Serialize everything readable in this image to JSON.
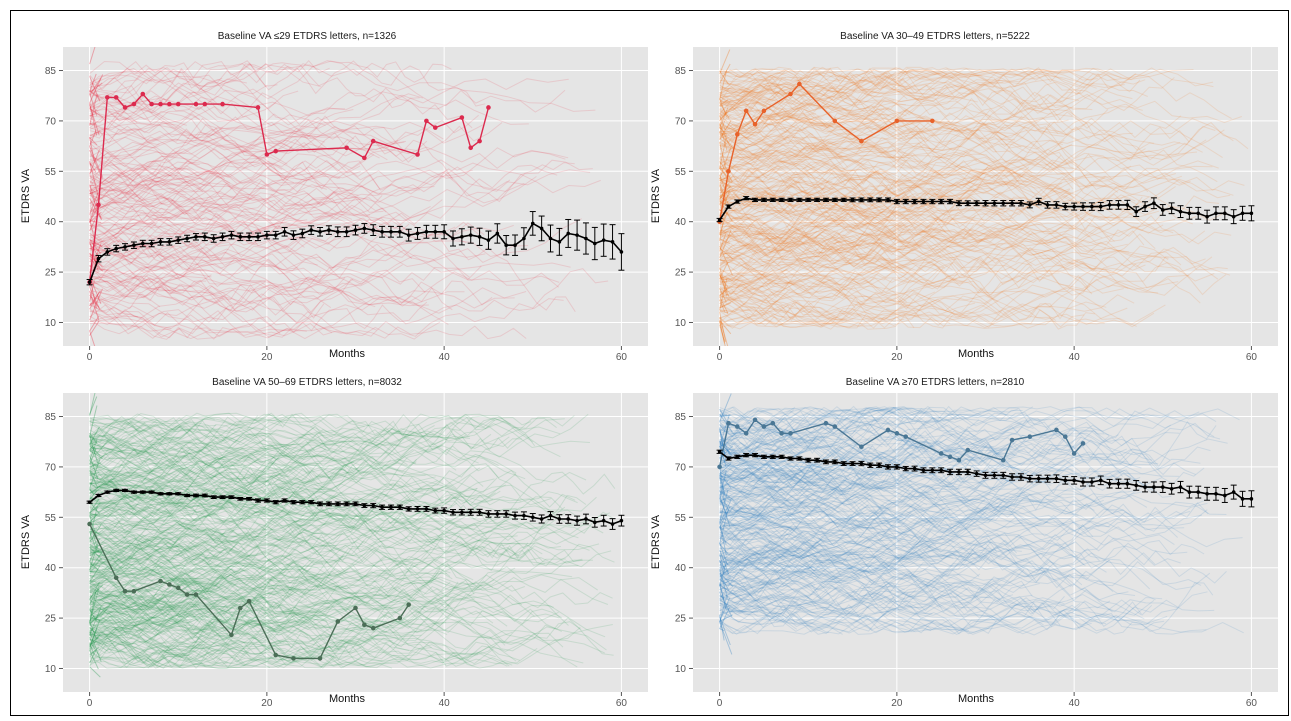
{
  "chart_data": [
    {
      "type": "line",
      "title": "Baseline VA ≤29 ETDRS letters, n=1326",
      "xlabel": "Months",
      "ylabel": "ETDRS VA",
      "xlim": [
        -3,
        63
      ],
      "ylim": [
        3,
        92
      ],
      "xticks": [
        0,
        20,
        40,
        60
      ],
      "yticks": [
        10,
        25,
        40,
        55,
        70,
        85
      ],
      "grid": true,
      "colors": {
        "cohort": "#e8233a",
        "highlight": "#dc2a4e",
        "mean": "#000000"
      },
      "background_band": {
        "y_low": 5,
        "y_high": 88,
        "density": "low"
      },
      "example_patient": {
        "x": [
          0,
          1,
          2,
          3,
          4,
          5,
          6,
          7,
          8,
          9,
          10,
          12,
          13,
          15,
          19,
          20,
          21,
          29,
          31,
          32,
          37,
          38,
          39,
          42,
          43,
          44,
          45
        ],
        "y": [
          22,
          45,
          77,
          77,
          74,
          75,
          78,
          75,
          75,
          75,
          75,
          75,
          75,
          75,
          74,
          60,
          61,
          62,
          59,
          64,
          60,
          70,
          68,
          71,
          62,
          64,
          74
        ]
      },
      "mean_series": {
        "name": "Mean ± SE",
        "x": [
          0,
          1,
          2,
          3,
          4,
          5,
          6,
          7,
          8,
          9,
          10,
          11,
          12,
          13,
          14,
          15,
          16,
          17,
          18,
          19,
          20,
          21,
          22,
          23,
          24,
          25,
          26,
          27,
          28,
          29,
          30,
          31,
          32,
          33,
          34,
          35,
          36,
          37,
          38,
          39,
          40,
          41,
          42,
          43,
          44,
          45,
          46,
          47,
          48,
          49,
          50,
          51,
          52,
          53,
          54,
          55,
          56,
          57,
          58,
          59,
          60
        ],
        "y": [
          22,
          29,
          31,
          32,
          32.5,
          33,
          33.5,
          33.5,
          34,
          34,
          34.5,
          35,
          35.5,
          35.5,
          35,
          35.5,
          36,
          35.5,
          35.5,
          35.5,
          36,
          36,
          37,
          36,
          36.5,
          37.5,
          37,
          37.5,
          37,
          37,
          37.5,
          38,
          37.5,
          37,
          37,
          37,
          36,
          36.5,
          37,
          37,
          37,
          35,
          35.5,
          36,
          35.5,
          34.5,
          36.5,
          33,
          33,
          35,
          39.5,
          38,
          35,
          34,
          36.5,
          36,
          35,
          33.5,
          34.5,
          34,
          31
        ],
        "se": [
          0.5,
          0.6,
          0.6,
          0.6,
          0.6,
          0.6,
          0.6,
          0.6,
          0.6,
          0.6,
          0.6,
          0.6,
          0.6,
          0.7,
          0.7,
          0.7,
          0.7,
          0.7,
          0.7,
          0.7,
          0.7,
          0.7,
          0.8,
          0.8,
          0.8,
          0.8,
          0.8,
          0.8,
          0.9,
          0.9,
          0.9,
          0.9,
          1.0,
          1.0,
          1.0,
          1.0,
          1.1,
          1.1,
          1.2,
          1.2,
          1.3,
          1.4,
          1.5,
          1.5,
          1.6,
          1.7,
          1.8,
          1.8,
          1.9,
          2.0,
          2.2,
          2.3,
          2.5,
          2.5,
          2.6,
          2.8,
          2.9,
          3.0,
          3.0,
          3.2,
          3.4
        ]
      }
    },
    {
      "type": "line",
      "title": "Baseline VA 30–49 ETDRS letters, n=5222",
      "xlabel": "Months",
      "ylabel": "ETDRS VA",
      "xlim": [
        -3,
        63
      ],
      "ylim": [
        3,
        92
      ],
      "xticks": [
        0,
        20,
        40,
        60
      ],
      "yticks": [
        10,
        25,
        40,
        55,
        70,
        85
      ],
      "grid": true,
      "colors": {
        "cohort": "#ee7318",
        "highlight": "#e8622a",
        "mean": "#000000"
      },
      "background_band": {
        "y_low": 8,
        "y_high": 86,
        "density": "high"
      },
      "example_patient": {
        "x": [
          0,
          1,
          2,
          3,
          4,
          5,
          8,
          9,
          13,
          16,
          20,
          24
        ],
        "y": [
          40,
          55,
          66,
          73,
          69,
          73,
          78,
          81,
          70,
          64,
          70,
          70
        ]
      },
      "mean_series": {
        "name": "Mean ± SE",
        "x": [
          0,
          1,
          2,
          3,
          4,
          5,
          6,
          7,
          8,
          9,
          10,
          11,
          12,
          13,
          14,
          15,
          16,
          17,
          18,
          19,
          20,
          21,
          22,
          23,
          24,
          25,
          26,
          27,
          28,
          29,
          30,
          31,
          32,
          33,
          34,
          35,
          36,
          37,
          38,
          39,
          40,
          41,
          42,
          43,
          44,
          45,
          46,
          47,
          48,
          49,
          50,
          51,
          52,
          53,
          54,
          55,
          56,
          57,
          58,
          59,
          60
        ],
        "y": [
          40.5,
          44.5,
          46,
          47,
          46.5,
          46.5,
          46.5,
          46.5,
          46.5,
          46.5,
          46.5,
          46.5,
          46.5,
          46.5,
          46.5,
          46.5,
          46.5,
          46.5,
          46.5,
          46.5,
          46,
          46,
          46,
          46,
          46,
          46,
          46,
          45.5,
          45.5,
          45.5,
          45.5,
          45.5,
          45.5,
          45.5,
          45.5,
          45,
          46,
          45,
          45,
          44.5,
          44.5,
          44.5,
          44.5,
          44.5,
          45,
          45,
          45,
          43,
          44.5,
          45.5,
          43.5,
          44,
          43,
          42.5,
          42.5,
          41.5,
          42.5,
          42.5,
          41.5,
          42.5,
          42.5
        ],
        "se": [
          0.3,
          0.3,
          0.3,
          0.3,
          0.3,
          0.3,
          0.3,
          0.3,
          0.3,
          0.3,
          0.3,
          0.3,
          0.3,
          0.3,
          0.3,
          0.35,
          0.35,
          0.35,
          0.35,
          0.35,
          0.4,
          0.4,
          0.4,
          0.4,
          0.4,
          0.4,
          0.4,
          0.45,
          0.45,
          0.45,
          0.5,
          0.5,
          0.5,
          0.5,
          0.5,
          0.55,
          0.6,
          0.6,
          0.6,
          0.6,
          0.65,
          0.7,
          0.7,
          0.75,
          0.8,
          0.8,
          0.85,
          0.9,
          0.9,
          1.0,
          1.0,
          1.0,
          1.1,
          1.1,
          1.1,
          1.2,
          1.2,
          1.2,
          1.3,
          1.3,
          1.4
        ]
      }
    },
    {
      "type": "line",
      "title": "Baseline VA 50–69 ETDRS letters, n=8032",
      "xlabel": "Months",
      "ylabel": "ETDRS VA",
      "xlim": [
        -3,
        63
      ],
      "ylim": [
        3,
        92
      ],
      "xticks": [
        0,
        20,
        40,
        60
      ],
      "yticks": [
        10,
        25,
        40,
        55,
        70,
        85
      ],
      "grid": true,
      "colors": {
        "cohort": "#1e9448",
        "highlight": "#4b6e57",
        "mean": "#000000"
      },
      "background_band": {
        "y_low": 10,
        "y_high": 86,
        "density": "very-high"
      },
      "example_patient": {
        "x": [
          0,
          3,
          4,
          5,
          8,
          9,
          10,
          11,
          12,
          16,
          17,
          18,
          21,
          23,
          26,
          28,
          30,
          31,
          32,
          35,
          36
        ],
        "y": [
          53,
          37,
          33,
          33,
          36,
          35,
          34,
          32,
          32,
          20,
          28,
          30,
          14,
          13,
          13,
          24,
          28,
          23,
          22,
          25,
          29
        ]
      },
      "mean_series": {
        "name": "Mean ± SE",
        "x": [
          0,
          1,
          2,
          3,
          4,
          5,
          6,
          7,
          8,
          9,
          10,
          11,
          12,
          13,
          14,
          15,
          16,
          17,
          18,
          19,
          20,
          21,
          22,
          23,
          24,
          25,
          26,
          27,
          28,
          29,
          30,
          31,
          32,
          33,
          34,
          35,
          36,
          37,
          38,
          39,
          40,
          41,
          42,
          43,
          44,
          45,
          46,
          47,
          48,
          49,
          50,
          51,
          52,
          53,
          54,
          55,
          56,
          57,
          58,
          59,
          60
        ],
        "y": [
          59.5,
          61.5,
          62.5,
          63,
          63,
          62.5,
          62.5,
          62.5,
          62,
          62,
          62,
          61.5,
          61.5,
          61.5,
          61,
          61,
          61,
          60.5,
          60.5,
          60,
          60,
          59.5,
          60,
          59.5,
          59.5,
          59.5,
          59,
          59,
          59,
          59,
          59,
          58.5,
          58.5,
          58,
          58,
          58,
          57.5,
          57.5,
          57.5,
          57,
          57,
          56.5,
          56.5,
          56.5,
          56.5,
          56,
          56,
          56,
          55.5,
          55.5,
          55,
          54.5,
          55.5,
          54.5,
          54.5,
          54,
          54.5,
          53.5,
          54,
          53,
          54
        ],
        "se": [
          0.2,
          0.2,
          0.2,
          0.2,
          0.2,
          0.2,
          0.2,
          0.2,
          0.2,
          0.2,
          0.2,
          0.2,
          0.25,
          0.25,
          0.25,
          0.25,
          0.25,
          0.25,
          0.25,
          0.3,
          0.3,
          0.3,
          0.3,
          0.3,
          0.3,
          0.3,
          0.35,
          0.35,
          0.35,
          0.35,
          0.35,
          0.35,
          0.4,
          0.4,
          0.4,
          0.4,
          0.4,
          0.45,
          0.45,
          0.45,
          0.5,
          0.5,
          0.5,
          0.55,
          0.55,
          0.6,
          0.6,
          0.6,
          0.65,
          0.7,
          0.7,
          0.75,
          0.75,
          0.8,
          0.8,
          0.85,
          0.9,
          0.9,
          1.0,
          1.0,
          1.0
        ]
      }
    },
    {
      "type": "line",
      "title": "Baseline VA ≥70 ETDRS letters, n=2810",
      "xlabel": "Months",
      "ylabel": "ETDRS VA",
      "xlim": [
        -3,
        63
      ],
      "ylim": [
        3,
        92
      ],
      "xticks": [
        0,
        20,
        40,
        60
      ],
      "yticks": [
        10,
        25,
        40,
        55,
        70,
        85
      ],
      "grid": true,
      "colors": {
        "cohort": "#2f7fbf",
        "highlight": "#4a7795",
        "mean": "#000000"
      },
      "background_band": {
        "y_low": 20,
        "y_high": 88,
        "density": "high"
      },
      "example_patient": {
        "x": [
          0,
          1,
          2,
          3,
          4,
          5,
          6,
          7,
          8,
          12,
          13,
          16,
          19,
          20,
          21,
          25,
          26,
          27,
          28,
          32,
          33,
          35,
          38,
          39,
          40,
          41
        ],
        "y": [
          70,
          83,
          82,
          80,
          84,
          82,
          83,
          80,
          80,
          83,
          82,
          76,
          81,
          80,
          79,
          74,
          73,
          72,
          75,
          72,
          78,
          79,
          81,
          79,
          74,
          77
        ]
      },
      "mean_series": {
        "name": "Mean ± SE",
        "x": [
          0,
          1,
          2,
          3,
          4,
          5,
          6,
          7,
          8,
          9,
          10,
          11,
          12,
          13,
          14,
          15,
          16,
          17,
          18,
          19,
          20,
          21,
          22,
          23,
          24,
          25,
          26,
          27,
          28,
          29,
          30,
          31,
          32,
          33,
          34,
          35,
          36,
          37,
          38,
          39,
          40,
          41,
          42,
          43,
          44,
          45,
          46,
          47,
          48,
          49,
          50,
          51,
          52,
          53,
          54,
          55,
          56,
          57,
          58,
          59,
          60
        ],
        "y": [
          74.5,
          72.5,
          73,
          73.5,
          73.5,
          73,
          73,
          73,
          72.5,
          72.5,
          72,
          72,
          71.5,
          71.5,
          71,
          71,
          71,
          70.5,
          70.5,
          70,
          70,
          69.5,
          69.5,
          69,
          69,
          69,
          68.5,
          68.5,
          68.5,
          68,
          67.5,
          67.5,
          67.5,
          67,
          67,
          66.5,
          66.5,
          66.5,
          66.5,
          66,
          66,
          65.5,
          65.5,
          66,
          65,
          65,
          65,
          64.5,
          64,
          64,
          64,
          63.5,
          64,
          62.5,
          62.5,
          62,
          62,
          61.5,
          62.5,
          60.5,
          60.5
        ],
        "se": [
          0.3,
          0.3,
          0.3,
          0.3,
          0.3,
          0.3,
          0.3,
          0.3,
          0.3,
          0.3,
          0.35,
          0.35,
          0.35,
          0.35,
          0.35,
          0.35,
          0.4,
          0.4,
          0.4,
          0.4,
          0.4,
          0.4,
          0.45,
          0.45,
          0.45,
          0.45,
          0.5,
          0.5,
          0.5,
          0.5,
          0.55,
          0.55,
          0.55,
          0.6,
          0.6,
          0.6,
          0.65,
          0.65,
          0.7,
          0.7,
          0.7,
          0.75,
          0.75,
          0.8,
          0.8,
          0.85,
          0.85,
          0.9,
          0.9,
          0.95,
          1.0,
          1.0,
          1.05,
          1.1,
          1.1,
          1.2,
          1.2,
          1.3,
          1.3,
          1.4,
          1.5
        ]
      }
    }
  ]
}
